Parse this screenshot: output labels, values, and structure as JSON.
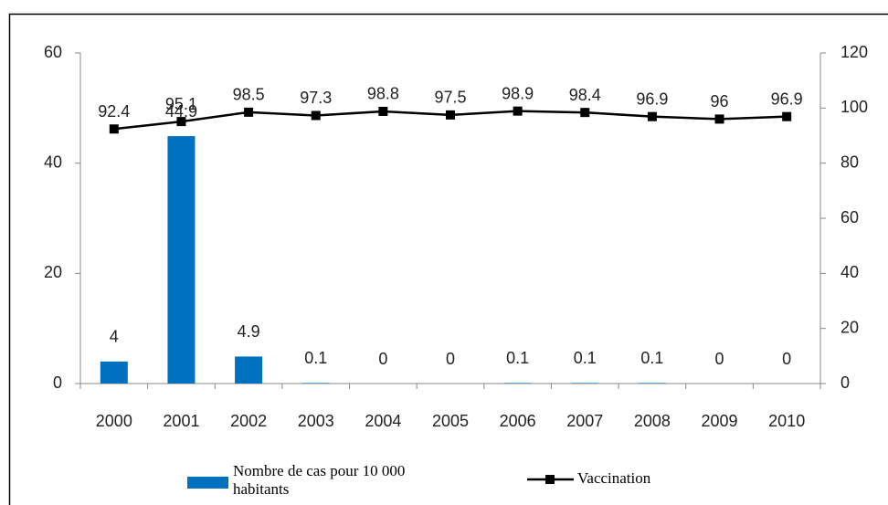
{
  "chart_data": {
    "type": "bar_line",
    "categories": [
      "2000",
      "2001",
      "2002",
      "2003",
      "2004",
      "2005",
      "2006",
      "2007",
      "2008",
      "2009",
      "2010"
    ],
    "series": [
      {
        "name": "Nombre de cas pour 10 000 habitants",
        "type": "bar",
        "axis": "y",
        "color": "#0070c0",
        "values": [
          4,
          44.9,
          4.9,
          0.1,
          0,
          0,
          0.1,
          0.1,
          0.1,
          0,
          0
        ]
      },
      {
        "name": "Vaccination",
        "type": "line",
        "axis": "y2",
        "color": "#000000",
        "values": [
          92.4,
          95.1,
          98.5,
          97.3,
          98.8,
          97.5,
          98.9,
          98.4,
          96.9,
          96,
          96.9
        ]
      }
    ],
    "ylim": [
      0,
      60
    ],
    "yticks": [
      0,
      20,
      40,
      60
    ],
    "y2lim": [
      0,
      120
    ],
    "y2ticks": [
      0,
      20,
      40,
      60,
      80,
      100,
      120
    ],
    "grid": false
  }
}
